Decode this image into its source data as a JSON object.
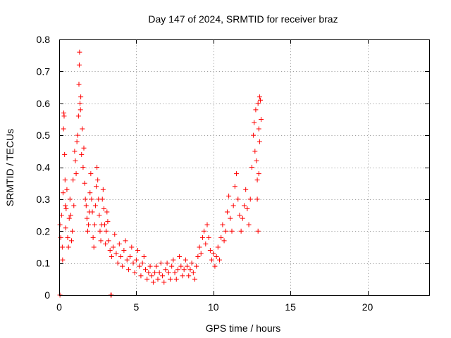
{
  "chart_data": {
    "type": "scatter",
    "title": "Day 147 of 2024, SRMTID for receiver braz",
    "xlabel": "GPS time / hours",
    "ylabel": "SRMTID / TECUs",
    "xlim": [
      0,
      24
    ],
    "ylim": [
      0,
      0.8
    ],
    "xticks": [
      0,
      5,
      10,
      15,
      20
    ],
    "yticks": [
      0,
      0.1,
      0.2,
      0.3,
      0.4,
      0.5,
      0.6,
      0.7,
      0.8
    ],
    "grid": true,
    "marker": "+",
    "color": "#ff0000",
    "series": [
      {
        "name": "SRMTID",
        "points": [
          [
            0.05,
            0.0
          ],
          [
            3.35,
            0.0
          ],
          [
            3.38,
            0.0
          ],
          [
            0.05,
            0.22
          ],
          [
            0.1,
            0.18
          ],
          [
            0.15,
            0.25
          ],
          [
            0.2,
            0.15
          ],
          [
            0.22,
            0.11
          ],
          [
            0.25,
            0.32
          ],
          [
            0.28,
            0.52
          ],
          [
            0.3,
            0.57
          ],
          [
            0.32,
            0.56
          ],
          [
            0.35,
            0.44
          ],
          [
            0.38,
            0.36
          ],
          [
            0.4,
            0.28
          ],
          [
            0.42,
            0.21
          ],
          [
            0.45,
            0.27
          ],
          [
            0.5,
            0.33
          ],
          [
            0.55,
            0.18
          ],
          [
            0.6,
            0.15
          ],
          [
            0.65,
            0.24
          ],
          [
            0.7,
            0.3
          ],
          [
            0.75,
            0.25
          ],
          [
            0.8,
            0.17
          ],
          [
            0.85,
            0.2
          ],
          [
            0.9,
            0.36
          ],
          [
            0.95,
            0.28
          ],
          [
            1.0,
            0.45
          ],
          [
            1.05,
            0.42
          ],
          [
            1.1,
            0.38
          ],
          [
            1.15,
            0.48
          ],
          [
            1.2,
            0.5
          ],
          [
            1.25,
            0.56
          ],
          [
            1.28,
            0.66
          ],
          [
            1.3,
            0.72
          ],
          [
            1.32,
            0.76
          ],
          [
            1.35,
            0.6
          ],
          [
            1.38,
            0.58
          ],
          [
            1.4,
            0.62
          ],
          [
            1.45,
            0.44
          ],
          [
            1.5,
            0.52
          ],
          [
            1.55,
            0.4
          ],
          [
            1.6,
            0.46
          ],
          [
            1.65,
            0.35
          ],
          [
            1.7,
            0.3
          ],
          [
            1.75,
            0.28
          ],
          [
            1.8,
            0.24
          ],
          [
            1.85,
            0.2
          ],
          [
            1.9,
            0.22
          ],
          [
            1.95,
            0.26
          ],
          [
            2.0,
            0.32
          ],
          [
            2.05,
            0.38
          ],
          [
            2.1,
            0.3
          ],
          [
            2.15,
            0.26
          ],
          [
            2.2,
            0.18
          ],
          [
            2.25,
            0.15
          ],
          [
            2.3,
            0.22
          ],
          [
            2.35,
            0.28
          ],
          [
            2.4,
            0.34
          ],
          [
            2.45,
            0.4
          ],
          [
            2.5,
            0.36
          ],
          [
            2.55,
            0.3
          ],
          [
            2.6,
            0.25
          ],
          [
            2.65,
            0.2
          ],
          [
            2.7,
            0.17
          ],
          [
            2.75,
            0.22
          ],
          [
            2.8,
            0.3
          ],
          [
            2.85,
            0.33
          ],
          [
            2.9,
            0.27
          ],
          [
            2.95,
            0.22
          ],
          [
            3.0,
            0.16
          ],
          [
            3.05,
            0.2
          ],
          [
            3.1,
            0.26
          ],
          [
            3.15,
            0.23
          ],
          [
            3.2,
            0.17
          ],
          [
            3.3,
            0.14
          ],
          [
            3.4,
            0.12
          ],
          [
            3.5,
            0.15
          ],
          [
            3.6,
            0.19
          ],
          [
            3.7,
            0.13
          ],
          [
            3.8,
            0.1
          ],
          [
            3.9,
            0.16
          ],
          [
            4.0,
            0.12
          ],
          [
            4.1,
            0.09
          ],
          [
            4.2,
            0.14
          ],
          [
            4.3,
            0.17
          ],
          [
            4.4,
            0.11
          ],
          [
            4.5,
            0.08
          ],
          [
            4.6,
            0.12
          ],
          [
            4.7,
            0.15
          ],
          [
            4.8,
            0.1
          ],
          [
            4.9,
            0.07
          ],
          [
            5.0,
            0.11
          ],
          [
            5.1,
            0.14
          ],
          [
            5.2,
            0.09
          ],
          [
            5.3,
            0.06
          ],
          [
            5.4,
            0.1
          ],
          [
            5.5,
            0.12
          ],
          [
            5.6,
            0.08
          ],
          [
            5.7,
            0.05
          ],
          [
            5.8,
            0.07
          ],
          [
            5.9,
            0.09
          ],
          [
            6.0,
            0.06
          ],
          [
            6.1,
            0.04
          ],
          [
            6.2,
            0.07
          ],
          [
            6.3,
            0.09
          ],
          [
            6.4,
            0.05
          ],
          [
            6.5,
            0.07
          ],
          [
            6.6,
            0.1
          ],
          [
            6.7,
            0.06
          ],
          [
            6.8,
            0.04
          ],
          [
            6.9,
            0.08
          ],
          [
            7.0,
            0.1
          ],
          [
            7.1,
            0.07
          ],
          [
            7.2,
            0.05
          ],
          [
            7.3,
            0.09
          ],
          [
            7.4,
            0.11
          ],
          [
            7.5,
            0.07
          ],
          [
            7.6,
            0.05
          ],
          [
            7.7,
            0.08
          ],
          [
            7.8,
            0.12
          ],
          [
            7.9,
            0.09
          ],
          [
            8.0,
            0.06
          ],
          [
            8.1,
            0.08
          ],
          [
            8.2,
            0.11
          ],
          [
            8.3,
            0.09
          ],
          [
            8.4,
            0.06
          ],
          [
            8.5,
            0.08
          ],
          [
            8.6,
            0.1
          ],
          [
            8.7,
            0.07
          ],
          [
            8.8,
            0.05
          ],
          [
            8.9,
            0.09
          ],
          [
            9.0,
            0.12
          ],
          [
            9.1,
            0.15
          ],
          [
            9.2,
            0.13
          ],
          [
            9.3,
            0.18
          ],
          [
            9.4,
            0.2
          ],
          [
            9.5,
            0.16
          ],
          [
            9.6,
            0.22
          ],
          [
            9.7,
            0.18
          ],
          [
            9.8,
            0.14
          ],
          [
            9.9,
            0.11
          ],
          [
            10.0,
            0.13
          ],
          [
            10.1,
            0.09
          ],
          [
            10.2,
            0.12
          ],
          [
            10.3,
            0.15
          ],
          [
            10.4,
            0.11
          ],
          [
            10.5,
            0.18
          ],
          [
            10.6,
            0.22
          ],
          [
            10.7,
            0.17
          ],
          [
            10.8,
            0.2
          ],
          [
            10.9,
            0.26
          ],
          [
            11.0,
            0.31
          ],
          [
            11.1,
            0.24
          ],
          [
            11.2,
            0.2
          ],
          [
            11.3,
            0.28
          ],
          [
            11.4,
            0.34
          ],
          [
            11.5,
            0.38
          ],
          [
            11.6,
            0.3
          ],
          [
            11.7,
            0.25
          ],
          [
            11.8,
            0.2
          ],
          [
            11.9,
            0.24
          ],
          [
            12.0,
            0.28
          ],
          [
            12.1,
            0.33
          ],
          [
            12.2,
            0.27
          ],
          [
            12.3,
            0.22
          ],
          [
            12.4,
            0.3
          ],
          [
            12.5,
            0.4
          ],
          [
            12.6,
            0.5
          ],
          [
            12.65,
            0.54
          ],
          [
            12.7,
            0.45
          ],
          [
            12.75,
            0.58
          ],
          [
            12.8,
            0.42
          ],
          [
            12.85,
            0.36
          ],
          [
            12.9,
            0.6
          ],
          [
            12.95,
            0.52
          ],
          [
            13.0,
            0.62
          ],
          [
            13.05,
            0.61
          ],
          [
            13.1,
            0.55
          ],
          [
            13.0,
            0.48
          ],
          [
            12.95,
            0.38
          ],
          [
            12.9,
            0.2
          ],
          [
            12.85,
            0.3
          ]
        ]
      }
    ]
  }
}
